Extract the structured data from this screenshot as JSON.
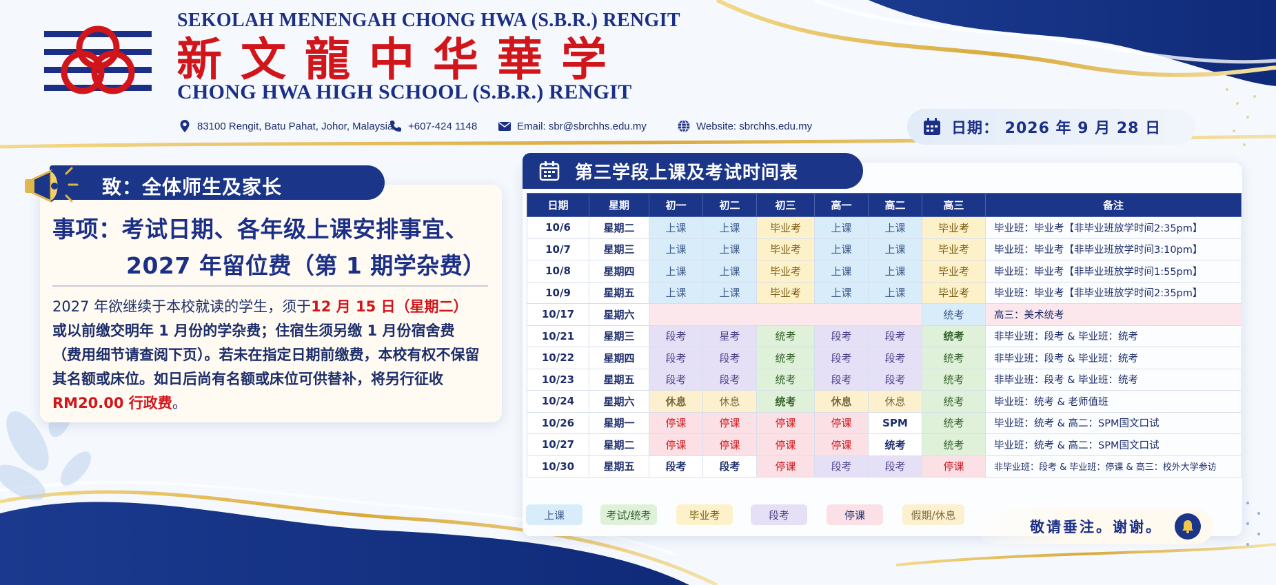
{
  "header": {
    "school_name_malay": "SEKOLAH MENENGAH CHONG HWA (S.B.R.) RENGIT",
    "school_name_chinese": "新文龍中华華学",
    "school_name_english": "CHONG HWA HIGH SCHOOL (S.B.R.) RENGIT",
    "address": "83100 Rengit, Batu Pahat, Johor, Malaysia.",
    "phone": "+607-424 1148",
    "email": "Email: sbr@sbrchhs.edu.my",
    "website": "Website: sbrchhs.edu.my",
    "date_text": "日期： 2026 年 9 月 28 日"
  },
  "notice": {
    "recipient": "致：全体师生及家长",
    "title_line1": "事项：考试日期、各年级上课安排事宜、",
    "title_line2": "2027 年留位费（第 1 期学杂费）",
    "body_1a": "2027 年欲继续于本校就读的学生，须于",
    "body_1b": "12 月 15 日（星期二）",
    "body_2": "或以前缴交明年 1 月份的学杂费；住宿生须另缴 1 月份宿舍费",
    "body_3": "（费用细节请查阅下页）。若未在指定日期前缴费，本校有权不保留",
    "body_4": "其名额或床位。如日后尚有名额或床位可供替补，将另行征收",
    "body_5a": "RM20.00 行政费",
    "body_5b": "。"
  },
  "schedule": {
    "title": "第三学段上课及考试时间表",
    "headers": [
      "日期",
      "星期",
      "初一",
      "初二",
      "初三",
      "高一",
      "高二",
      "高三",
      "备注"
    ],
    "rows": [
      {
        "date": "10/6",
        "day": "星期二",
        "cells": [
          "上课",
          "上课",
          "毕业考",
          "上课",
          "上课",
          "毕业考"
        ],
        "note": "毕业班：毕业考【非毕业班放学时间2:35pm】"
      },
      {
        "date": "10/7",
        "day": "星期三",
        "cells": [
          "上课",
          "上课",
          "毕业考",
          "上课",
          "上课",
          "毕业考"
        ],
        "note": "毕业班：毕业考【非毕业班放学时间3:10pm】"
      },
      {
        "date": "10/8",
        "day": "星期四",
        "cells": [
          "上课",
          "上课",
          "毕业考",
          "上课",
          "上课",
          "毕业考"
        ],
        "note": "毕业班：毕业考【非毕业班放学时间1:55pm】"
      },
      {
        "date": "10/9",
        "day": "星期五",
        "cells": [
          "上课",
          "上课",
          "毕业考",
          "上课",
          "上课",
          "毕业考"
        ],
        "note": "毕业班：毕业考【非毕业班放学时间2:35pm】"
      },
      {
        "date": "10/17",
        "day": "星期六",
        "cells": [
          "",
          "",
          "",
          "",
          "",
          "统考"
        ],
        "note": "高三：美术统考"
      },
      {
        "date": "10/21",
        "day": "星期三",
        "cells": [
          "段考",
          "星考",
          "统考",
          "段考",
          "段考",
          "统考"
        ],
        "note": "非毕业班：段考 & 毕业班：统考"
      },
      {
        "date": "10/22",
        "day": "星期四",
        "cells": [
          "段考",
          "段考",
          "统考",
          "段考",
          "段考",
          "统考"
        ],
        "note": "非毕业班：段考 & 毕业班：统考"
      },
      {
        "date": "10/23",
        "day": "星期五",
        "cells": [
          "段考",
          "段考",
          "统考",
          "段考",
          "段考",
          "统考"
        ],
        "note": "非毕业班：段考 & 毕业班：统考"
      },
      {
        "date": "10/24",
        "day": "星期六",
        "cells": [
          "休息",
          "休息",
          "统考",
          "休息",
          "休息",
          "统考"
        ],
        "note": "毕业班：统考 & 老师值班"
      },
      {
        "date": "10/26",
        "day": "星期一",
        "cells": [
          "停课",
          "停课",
          "停课",
          "停课",
          "SPM",
          "统考"
        ],
        "note": "毕业班：统考 & 高二：SPM国文口试"
      },
      {
        "date": "10/27",
        "day": "星期二",
        "cells": [
          "停课",
          "停课",
          "停课",
          "停课",
          "统考",
          "统考"
        ],
        "note": "毕业班：统考 & 高二：SPM国文口试"
      },
      {
        "date": "10/30",
        "day": "星期五",
        "cells": [
          "段考",
          "段考",
          "停课",
          "段考",
          "段考",
          "停课"
        ],
        "note": "非毕业班：段考 & 毕业班：停课 & 高三：校外大学参访"
      }
    ]
  },
  "legend": [
    "上课",
    "考试/统考",
    "毕业考",
    "段考",
    "停课",
    "假期/休息"
  ],
  "footer": {
    "regards": "敬请垂注。谢谢。"
  },
  "colors": {
    "navy": "#1b3588",
    "red": "#d1161b",
    "gold": "#e0b84a"
  },
  "icons": [
    "location-pin-icon",
    "phone-icon",
    "email-icon",
    "globe-icon",
    "calendar-icon",
    "megaphone-icon",
    "bell-icon"
  ]
}
